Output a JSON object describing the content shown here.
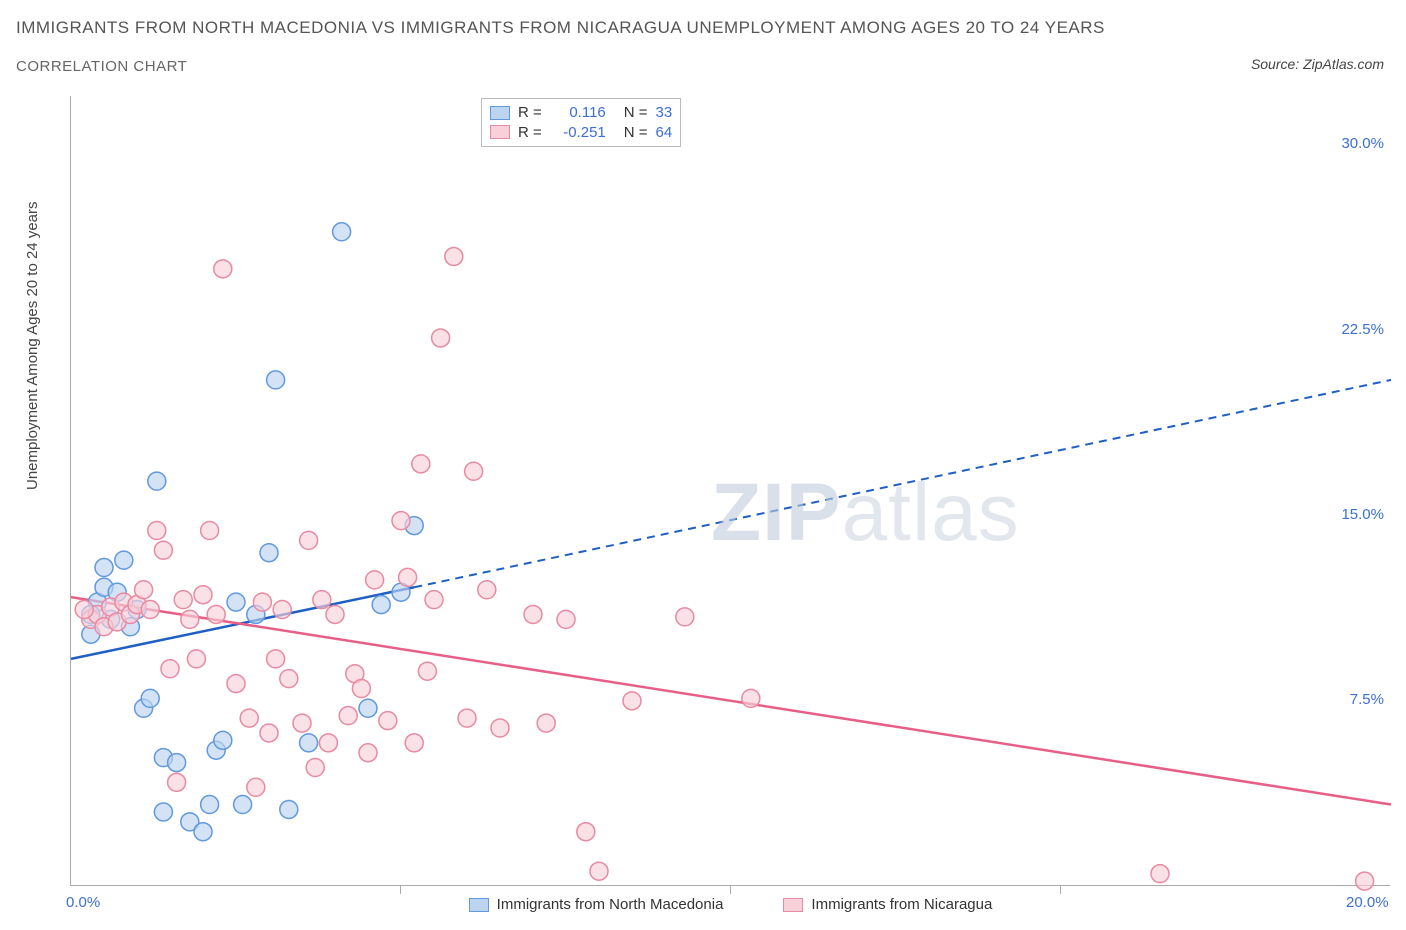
{
  "title": "IMMIGRANTS FROM NORTH MACEDONIA VS IMMIGRANTS FROM NICARAGUA UNEMPLOYMENT AMONG AGES 20 TO 24 YEARS",
  "subtitle": "CORRELATION CHART",
  "source_label": "Source:",
  "source_value": "ZipAtlas.com",
  "ylabel": "Unemployment Among Ages 20 to 24 years",
  "watermark_bold": "ZIP",
  "watermark_light": "atlas",
  "chart": {
    "type": "scatter",
    "background_color": "#ffffff",
    "axis_color": "#aaaaaa",
    "xlim": [
      0,
      20
    ],
    "ylim": [
      0,
      32
    ],
    "xtick_labels": [
      "0.0%",
      "20.0%"
    ],
    "xtick_positions": [
      0,
      20
    ],
    "xtick_minor_positions": [
      5,
      10,
      15
    ],
    "ytick_labels": [
      "7.5%",
      "15.0%",
      "22.5%",
      "30.0%"
    ],
    "ytick_positions": [
      7.5,
      15,
      22.5,
      30
    ],
    "marker_radius": 9,
    "marker_stroke_width": 1.5,
    "trend_line_width": 2.5,
    "series": [
      {
        "name": "Immigrants from North Macedonia",
        "fill": "#bcd4f0",
        "stroke": "#6199de",
        "trend_color": "#1f5fc4",
        "R": "0.116",
        "N": "33",
        "trend": {
          "x1": 0,
          "y1": 9.2,
          "x2_solid": 5.2,
          "y2_solid": 12.1,
          "x2_dash": 20,
          "y2_dash": 20.5
        },
        "points": [
          [
            0.3,
            10.2
          ],
          [
            0.4,
            11.5
          ],
          [
            0.5,
            12.1
          ],
          [
            0.6,
            10.8
          ],
          [
            0.7,
            11.9
          ],
          [
            0.8,
            13.2
          ],
          [
            0.9,
            10.5
          ],
          [
            1.0,
            11.2
          ],
          [
            1.1,
            7.2
          ],
          [
            1.2,
            7.6
          ],
          [
            1.3,
            16.4
          ],
          [
            1.4,
            5.2
          ],
          [
            1.4,
            3.0
          ],
          [
            1.6,
            5.0
          ],
          [
            1.8,
            2.6
          ],
          [
            2.0,
            2.2
          ],
          [
            2.1,
            3.3
          ],
          [
            2.2,
            5.5
          ],
          [
            2.3,
            5.9
          ],
          [
            2.5,
            11.5
          ],
          [
            2.6,
            3.3
          ],
          [
            2.8,
            11.0
          ],
          [
            3.0,
            13.5
          ],
          [
            3.1,
            20.5
          ],
          [
            3.3,
            3.1
          ],
          [
            3.6,
            5.8
          ],
          [
            4.1,
            26.5
          ],
          [
            4.5,
            7.2
          ],
          [
            4.7,
            11.4
          ],
          [
            5.0,
            11.9
          ],
          [
            5.2,
            14.6
          ],
          [
            0.5,
            12.9
          ],
          [
            0.3,
            11.0
          ]
        ]
      },
      {
        "name": "Immigrants from Nicaragua",
        "fill": "#f7d0da",
        "stroke": "#e88aa2",
        "trend_color": "#e75f87",
        "R": "-0.251",
        "N": "64",
        "trend": {
          "x1": 0,
          "y1": 11.7,
          "x2_solid": 20,
          "y2_solid": 3.3,
          "x2_dash": 20,
          "y2_dash": 3.3
        },
        "points": [
          [
            0.3,
            10.8
          ],
          [
            0.4,
            11.0
          ],
          [
            0.5,
            10.5
          ],
          [
            0.6,
            11.3
          ],
          [
            0.7,
            10.7
          ],
          [
            0.8,
            11.5
          ],
          [
            0.9,
            11.0
          ],
          [
            1.0,
            11.4
          ],
          [
            1.1,
            12.0
          ],
          [
            1.2,
            11.2
          ],
          [
            1.3,
            14.4
          ],
          [
            1.4,
            13.6
          ],
          [
            1.5,
            8.8
          ],
          [
            1.6,
            4.2
          ],
          [
            1.7,
            11.6
          ],
          [
            1.8,
            10.8
          ],
          [
            1.9,
            9.2
          ],
          [
            2.0,
            11.8
          ],
          [
            2.1,
            14.4
          ],
          [
            2.2,
            11.0
          ],
          [
            2.3,
            25.0
          ],
          [
            2.5,
            8.2
          ],
          [
            2.7,
            6.8
          ],
          [
            2.8,
            4.0
          ],
          [
            2.9,
            11.5
          ],
          [
            3.0,
            6.2
          ],
          [
            3.1,
            9.2
          ],
          [
            3.2,
            11.2
          ],
          [
            3.3,
            8.4
          ],
          [
            3.5,
            6.6
          ],
          [
            3.6,
            14.0
          ],
          [
            3.7,
            4.8
          ],
          [
            3.8,
            11.6
          ],
          [
            3.9,
            5.8
          ],
          [
            4.0,
            11.0
          ],
          [
            4.2,
            6.9
          ],
          [
            4.3,
            8.6
          ],
          [
            4.4,
            8.0
          ],
          [
            4.5,
            5.4
          ],
          [
            4.6,
            12.4
          ],
          [
            4.8,
            6.7
          ],
          [
            5.0,
            14.8
          ],
          [
            5.1,
            12.5
          ],
          [
            5.2,
            5.8
          ],
          [
            5.3,
            17.1
          ],
          [
            5.4,
            8.7
          ],
          [
            5.5,
            11.6
          ],
          [
            5.6,
            22.2
          ],
          [
            5.8,
            25.5
          ],
          [
            6.0,
            6.8
          ],
          [
            6.1,
            16.8
          ],
          [
            6.3,
            12.0
          ],
          [
            6.5,
            6.4
          ],
          [
            7.0,
            11.0
          ],
          [
            7.2,
            6.6
          ],
          [
            7.5,
            10.8
          ],
          [
            7.8,
            2.2
          ],
          [
            8.0,
            0.6
          ],
          [
            8.5,
            7.5
          ],
          [
            9.3,
            10.9
          ],
          [
            10.3,
            7.6
          ],
          [
            16.5,
            0.5
          ],
          [
            19.6,
            0.2
          ],
          [
            0.2,
            11.2
          ]
        ]
      }
    ],
    "legend_top": {
      "R_label": "R =",
      "N_label": "N ="
    }
  }
}
